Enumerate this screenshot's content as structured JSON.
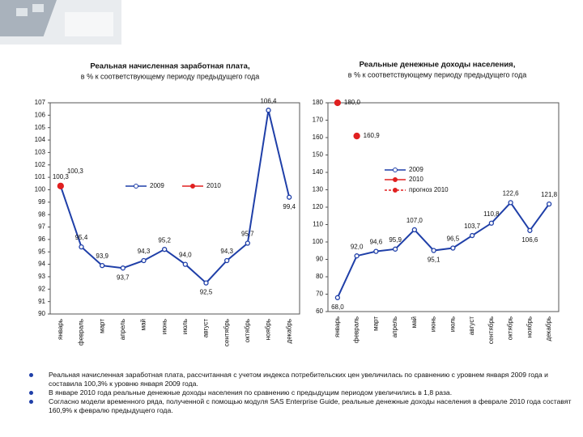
{
  "chart_data": [
    {
      "type": "line",
      "title": "Реальная начисленная заработная плата,",
      "subtitle": "в % к соответствующему периоду предыдущего года",
      "categories": [
        "январь",
        "февраль",
        "март",
        "апрель",
        "май",
        "июнь",
        "июль",
        "август",
        "сентябрь",
        "октябрь",
        "ноябрь",
        "декабрь"
      ],
      "series": [
        {
          "name": "2009",
          "color": "#1f3fa8",
          "values": [
            100.3,
            95.4,
            93.9,
            93.7,
            94.3,
            95.2,
            94.0,
            92.5,
            94.3,
            95.7,
            106.4,
            99.4
          ],
          "value_labels": [
            "100,3",
            "95,4",
            "93,9",
            "93,7",
            "94,3",
            "95,2",
            "94,0",
            "92,5",
            "94,3",
            "95,7",
            "106,4",
            "99,4"
          ]
        },
        {
          "name": "2010",
          "color": "#e02020",
          "values": [
            100.3,
            null,
            null,
            null,
            null,
            null,
            null,
            null,
            null,
            null,
            null,
            null
          ],
          "value_labels": [
            "100,3",
            null,
            null,
            null,
            null,
            null,
            null,
            null,
            null,
            null,
            null,
            null
          ]
        }
      ],
      "ylim": [
        90,
        107
      ],
      "yticks": [
        90,
        91,
        92,
        93,
        94,
        95,
        96,
        97,
        98,
        99,
        100,
        101,
        102,
        103,
        104,
        105,
        106,
        107
      ]
    },
    {
      "type": "line",
      "title": "Реальные денежные доходы населения,",
      "subtitle": "в % к соответствующему периоду предыдущего года",
      "categories": [
        "январь",
        "февраль",
        "март",
        "апрель",
        "май",
        "июнь",
        "июль",
        "август",
        "сентябрь",
        "октябрь",
        "ноябрь",
        "декабрь"
      ],
      "series": [
        {
          "name": "2009",
          "color": "#1f3fa8",
          "values": [
            68.0,
            92.0,
            94.6,
            95.9,
            107.0,
            95.1,
            96.5,
            103.7,
            110.8,
            122.6,
            106.6,
            121.8
          ],
          "value_labels": [
            "68,0",
            "92,0",
            "94,6",
            "95,9",
            "107,0",
            "95,1",
            "96,5",
            "103,7",
            "110,8",
            "122,6",
            "106,6",
            "121,8"
          ]
        },
        {
          "name": "2010",
          "color": "#e02020",
          "values": [
            180.0,
            null,
            null,
            null,
            null,
            null,
            null,
            null,
            null,
            null,
            null,
            null
          ],
          "value_labels": [
            "180,0",
            null,
            null,
            null,
            null,
            null,
            null,
            null,
            null,
            null,
            null,
            null
          ]
        },
        {
          "name": "прогноз 2010",
          "color": "#e02020",
          "dashed": true,
          "values": [
            null,
            160.9,
            null,
            null,
            null,
            null,
            null,
            null,
            null,
            null,
            null,
            null
          ],
          "value_labels": [
            null,
            "160,9",
            null,
            null,
            null,
            null,
            null,
            null,
            null,
            null,
            null,
            null
          ]
        }
      ],
      "ylim": [
        60,
        180
      ],
      "yticks": [
        60,
        70,
        80,
        90,
        100,
        110,
        120,
        130,
        140,
        150,
        160,
        170,
        180
      ]
    }
  ],
  "bullets": [
    "Реальная начисленная заработная плата, рассчитанная с учетом индекса потребительских цен увеличилась по сравнению с уровнем января 2009 года и составила 100,3% к уровню января 2009 года.",
    "В январе 2010 года реальные денежные доходы населения по сравнению с предыдущим периодом увеличились в 1,8 раза.",
    "Согласно модели временного ряда, полученной с помощью модуля SAS Enterprise Guide, реальные денежные доходы населения в феврале 2010 года составят 160,9% к февралю предыдущего года."
  ]
}
